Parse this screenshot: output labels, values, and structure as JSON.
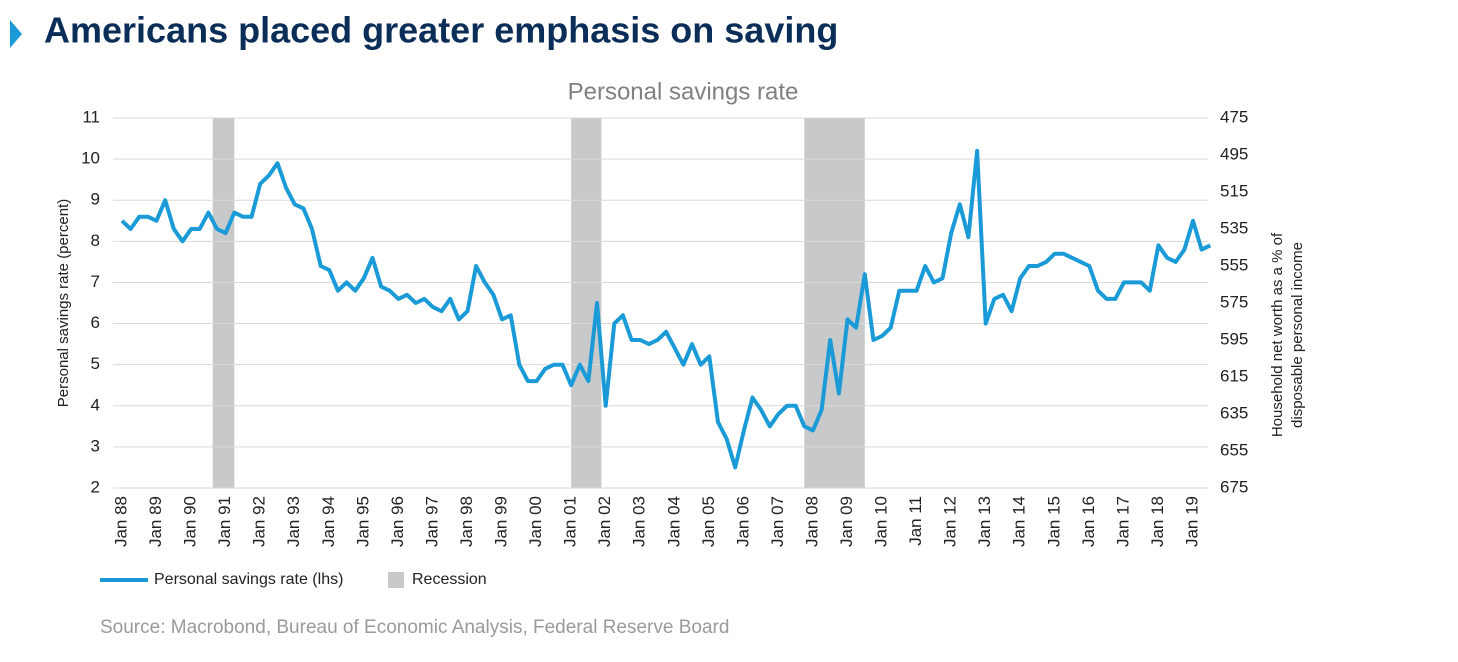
{
  "title": "Americans placed greater emphasis on saving",
  "source": "Source: Macrobond, Bureau of Economic Analysis, Federal Reserve Board",
  "chart_data": {
    "type": "line",
    "title": "Personal savings rate",
    "y_label": "Personal savings rate (percent)",
    "y2_label": [
      "Household net worth as a % of",
      "disposable personal income"
    ],
    "categories": [
      "Jan 88",
      null,
      null,
      null,
      "Jan 89",
      null,
      null,
      null,
      "Jan 90",
      null,
      null,
      null,
      "Jan 91",
      null,
      null,
      null,
      "Jan 92",
      null,
      null,
      null,
      "Jan 93",
      null,
      null,
      null,
      "Jan 94",
      null,
      null,
      null,
      "Jan 95",
      null,
      null,
      null,
      "Jan 96",
      null,
      null,
      null,
      "Jan 97",
      null,
      null,
      null,
      "Jan 98",
      null,
      null,
      null,
      "Jan 99",
      null,
      null,
      null,
      "Jan 00",
      null,
      null,
      null,
      "Jan 01",
      null,
      null,
      null,
      "Jan 02",
      null,
      null,
      null,
      "Jan 03",
      null,
      null,
      null,
      "Jan 04",
      null,
      null,
      null,
      "Jan 05",
      null,
      null,
      null,
      "Jan 06",
      null,
      null,
      null,
      "Jan 07",
      null,
      null,
      null,
      "Jan 08",
      null,
      null,
      null,
      "Jan 09",
      null,
      null,
      null,
      "Jan 10",
      null,
      null,
      null,
      "Jan 11",
      null,
      null,
      null,
      "Jan 12",
      null,
      null,
      null,
      "Jan 13",
      null,
      null,
      null,
      "Jan 14",
      null,
      null,
      null,
      "Jan 15",
      null,
      null,
      null,
      "Jan 16",
      null,
      null,
      null,
      "Jan 17",
      null,
      null,
      null,
      "Jan 18",
      null,
      null,
      null,
      "Jan 19",
      null,
      null
    ],
    "series": [
      {
        "name": "Personal savings rate (lhs)",
        "color": "#1a9bd7",
        "values": [
          8.5,
          8.3,
          8.6,
          8.6,
          8.5,
          9.0,
          8.3,
          8.0,
          8.3,
          8.3,
          8.7,
          8.3,
          8.2,
          8.7,
          8.6,
          8.6,
          9.4,
          9.6,
          9.9,
          9.3,
          8.9,
          8.8,
          8.3,
          7.4,
          7.3,
          6.8,
          7.0,
          6.8,
          7.1,
          7.6,
          6.9,
          6.8,
          6.6,
          6.7,
          6.5,
          6.6,
          6.4,
          6.3,
          6.6,
          6.1,
          6.3,
          7.4,
          7.0,
          6.7,
          6.1,
          6.2,
          5.0,
          4.6,
          4.6,
          4.9,
          5.0,
          5.0,
          4.5,
          5.0,
          4.6,
          6.5,
          4.0,
          6.0,
          6.2,
          5.6,
          5.6,
          5.5,
          5.6,
          5.8,
          5.4,
          5.0,
          5.5,
          5.0,
          5.2,
          3.6,
          3.2,
          2.5,
          3.4,
          4.2,
          3.9,
          3.5,
          3.8,
          4.0,
          4.0,
          3.5,
          3.4,
          3.9,
          5.6,
          4.3,
          6.1,
          5.9,
          7.2,
          5.6,
          5.7,
          5.9,
          6.8,
          6.8,
          6.8,
          7.4,
          7.0,
          7.1,
          8.2,
          8.9,
          8.1,
          10.2,
          6.0,
          6.6,
          6.7,
          6.3,
          7.1,
          7.4,
          7.4,
          7.5,
          7.7,
          7.7,
          7.6,
          7.5,
          7.4,
          6.8,
          6.6,
          6.6,
          7.0,
          7.0,
          7.0,
          6.8,
          7.9,
          7.6,
          7.5,
          7.8,
          8.5,
          7.8,
          7.9
        ]
      }
    ],
    "recession": {
      "name": "Recession",
      "color": "#c8c9cb",
      "spans": [
        [
          10.5,
          13
        ],
        [
          52,
          55.5
        ],
        [
          79,
          86
        ]
      ]
    },
    "ylim": [
      2,
      11
    ],
    "yticks": [
      2,
      3,
      4,
      5,
      6,
      7,
      8,
      9,
      10,
      11
    ],
    "y2lim": [
      675,
      475
    ],
    "y2ticks": [
      475,
      495,
      515,
      535,
      555,
      575,
      595,
      615,
      635,
      655,
      675
    ],
    "grid": true
  }
}
